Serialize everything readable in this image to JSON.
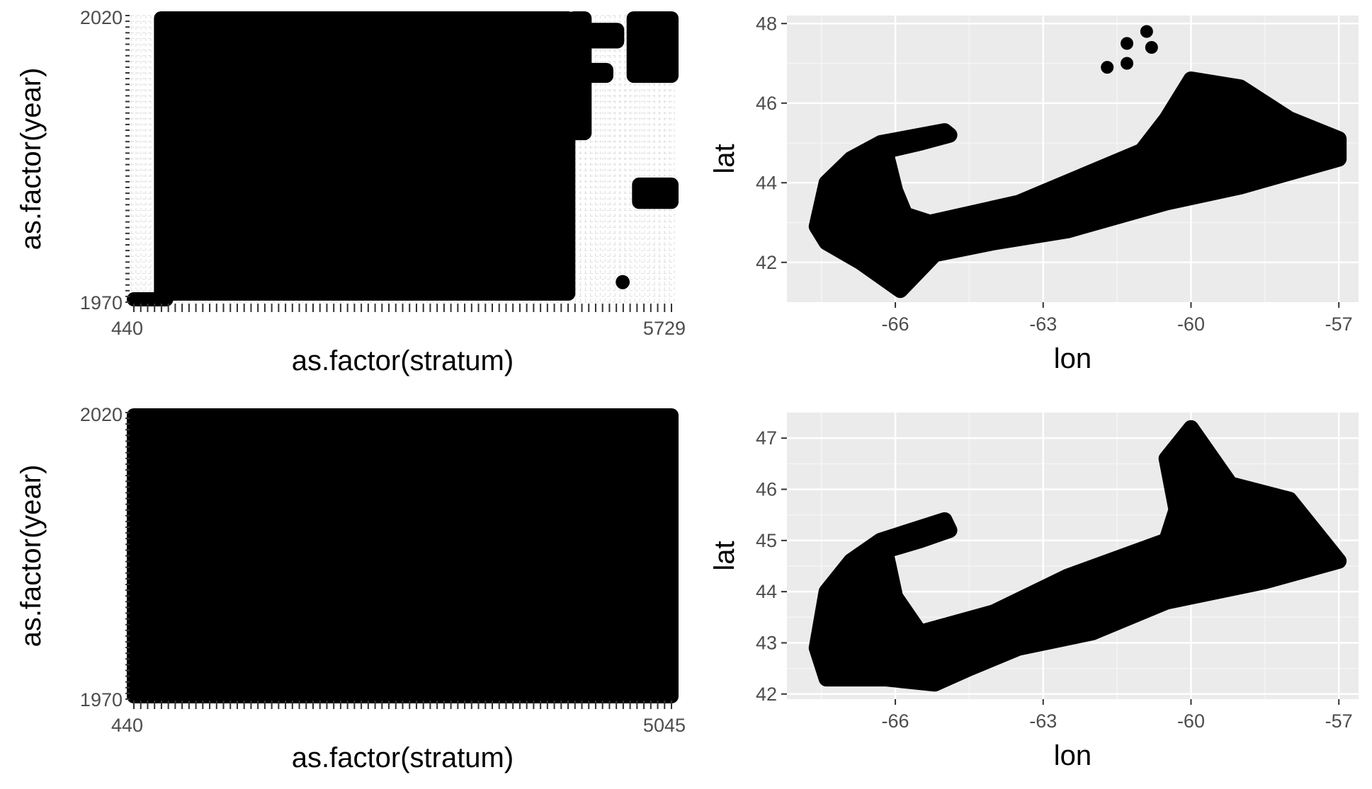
{
  "chart_data": [
    {
      "id": "top-left",
      "type": "scatter",
      "xlabel": "as.factor(stratum)",
      "ylabel": "as.factor(year)",
      "y_tick_labels": [
        "1970",
        "2020"
      ],
      "x_tick_labels_first": "440",
      "x_tick_labels_last": "5729",
      "background": "#ffffff",
      "grid": "dashed",
      "description_of_data": "dense points per stratum-year combination; legible tick text only at axis ends",
      "blocks": [
        {
          "x": [
            0.0,
            0.07
          ],
          "y": [
            1970,
            1971
          ],
          "note": "few early-year strata"
        },
        {
          "x": [
            0.05,
            0.81
          ],
          "y": [
            1971,
            2020
          ],
          "note": "main survey strata all years"
        },
        {
          "x": [
            0.81,
            0.84
          ],
          "y": [
            1999,
            2020
          ]
        },
        {
          "x": [
            0.81,
            0.9
          ],
          "y": [
            2015,
            2018
          ]
        },
        {
          "x": [
            0.81,
            0.88
          ],
          "y": [
            2009,
            2011
          ]
        },
        {
          "x": [
            0.92,
            1.0
          ],
          "y": [
            2009,
            2020
          ]
        },
        {
          "x": [
            0.93,
            1.0
          ],
          "y": [
            1987,
            1991
          ]
        },
        {
          "x": [
            0.9,
            0.91
          ],
          "y": [
            1973,
            1974
          ]
        }
      ]
    },
    {
      "id": "top-right",
      "type": "scatter",
      "xlabel": "lon",
      "ylabel": "lat",
      "xlim": [
        -68.2,
        -56.6
      ],
      "ylim": [
        41.0,
        48.2
      ],
      "x_ticks": [
        -66,
        -63,
        -60,
        -57
      ],
      "y_ticks": [
        42,
        44,
        46,
        48
      ],
      "background": "#ebebeb",
      "grid": true,
      "outliers": [
        [
          -61.7,
          46.9
        ],
        [
          -61.3,
          47.0
        ],
        [
          -61.3,
          47.5
        ],
        [
          -60.9,
          47.8
        ],
        [
          -60.8,
          47.4
        ]
      ],
      "region_outline": [
        [
          -67.6,
          42.9
        ],
        [
          -67.4,
          44.0
        ],
        [
          -66.9,
          44.6
        ],
        [
          -66.3,
          45.0
        ],
        [
          -65.0,
          45.3
        ],
        [
          -64.9,
          45.2
        ],
        [
          -65.5,
          45.0
        ],
        [
          -66.2,
          44.8
        ],
        [
          -66.0,
          43.8
        ],
        [
          -65.8,
          43.2
        ],
        [
          -65.3,
          43.0
        ],
        [
          -63.5,
          43.5
        ],
        [
          -61.0,
          44.8
        ],
        [
          -60.5,
          45.6
        ],
        [
          -60.0,
          46.6
        ],
        [
          -59.0,
          46.4
        ],
        [
          -58.0,
          45.6
        ],
        [
          -57.0,
          45.1
        ],
        [
          -57.0,
          44.6
        ],
        [
          -59.0,
          43.9
        ],
        [
          -60.5,
          43.5
        ],
        [
          -62.5,
          42.8
        ],
        [
          -64.0,
          42.5
        ],
        [
          -65.2,
          42.2
        ],
        [
          -65.9,
          41.3
        ],
        [
          -66.7,
          42.0
        ],
        [
          -67.4,
          42.5
        ]
      ]
    },
    {
      "id": "bottom-left",
      "type": "scatter",
      "xlabel": "as.factor(stratum)",
      "ylabel": "as.factor(year)",
      "y_tick_labels": [
        "1970",
        "2020"
      ],
      "x_tick_labels_first": "440",
      "x_tick_labels_last": "5045",
      "background": "#ffffff",
      "grid": "dashed",
      "description_of_data": "every stratum-year combination filled",
      "blocks": [
        {
          "x": [
            0.0,
            1.0
          ],
          "y": [
            1970,
            2020
          ],
          "note": "complete coverage"
        }
      ]
    },
    {
      "id": "bottom-right",
      "type": "scatter",
      "xlabel": "lon",
      "ylabel": "lat",
      "xlim": [
        -68.2,
        -56.6
      ],
      "ylim": [
        41.9,
        47.5
      ],
      "x_ticks": [
        -66,
        -63,
        -60,
        -57
      ],
      "y_ticks": [
        42,
        43,
        44,
        45,
        46,
        47
      ],
      "background": "#ebebeb",
      "grid": true,
      "outliers": [],
      "region_outline": [
        [
          -67.6,
          42.9
        ],
        [
          -67.4,
          44.0
        ],
        [
          -66.9,
          44.6
        ],
        [
          -66.3,
          45.0
        ],
        [
          -65.0,
          45.4
        ],
        [
          -64.9,
          45.2
        ],
        [
          -65.5,
          45.0
        ],
        [
          -66.2,
          44.8
        ],
        [
          -66.0,
          43.9
        ],
        [
          -65.5,
          43.2
        ],
        [
          -64.0,
          43.6
        ],
        [
          -62.5,
          44.3
        ],
        [
          -60.5,
          45.0
        ],
        [
          -60.3,
          45.6
        ],
        [
          -60.5,
          46.6
        ],
        [
          -60.0,
          47.2
        ],
        [
          -59.2,
          46.1
        ],
        [
          -58.0,
          45.8
        ],
        [
          -57.0,
          44.6
        ],
        [
          -58.5,
          44.2
        ],
        [
          -60.5,
          43.8
        ],
        [
          -62.0,
          43.2
        ],
        [
          -63.5,
          42.9
        ],
        [
          -64.5,
          42.5
        ],
        [
          -65.2,
          42.2
        ],
        [
          -66.2,
          42.3
        ],
        [
          -67.4,
          42.3
        ]
      ]
    }
  ]
}
